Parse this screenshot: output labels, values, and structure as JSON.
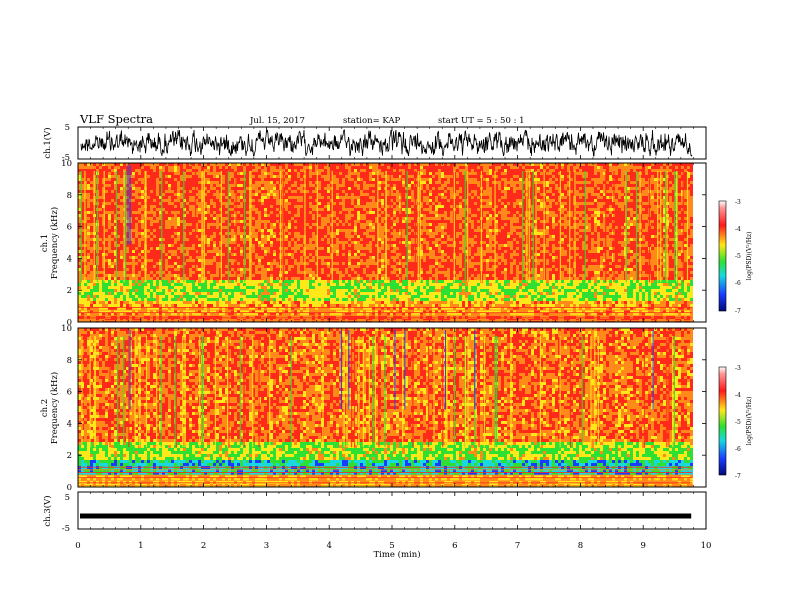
{
  "header": {
    "title": "VLF Spectra",
    "date": "Jul. 15, 2017",
    "station": "station= KAP",
    "start": "start  UT  =   5  : 50 : 1"
  },
  "chart_data": [
    {
      "type": "line",
      "panel": "ch1-waveform",
      "ylabel": "ch.1(V)",
      "ylim": [
        -5,
        5
      ],
      "yticks": [
        "5",
        "-5"
      ],
      "xlim": [
        0,
        10
      ],
      "description_series": "noisy broadband waveform around 0 V, amplitude about ±3 V"
    },
    {
      "type": "heatmap",
      "panel": "ch1-spectrogram",
      "ylabel_top": "ch.1",
      "ylabel": "Frequency  (kHz)",
      "ylim": [
        0,
        10
      ],
      "yticks": [
        "0",
        "2",
        "4",
        "6",
        "8",
        "10"
      ],
      "xlim": [
        0,
        10
      ],
      "colorbar": {
        "label": "log(PSD)(V²/Hz)",
        "range": [
          -7,
          -3
        ],
        "ticks": [
          "-3",
          "-4",
          "-5",
          "-6",
          "-7"
        ]
      }
    },
    {
      "type": "heatmap",
      "panel": "ch2-spectrogram",
      "ylabel_top": "ch.2",
      "ylabel": "Frequency  (kHz)",
      "ylim": [
        0,
        10
      ],
      "yticks": [
        "0",
        "2",
        "4",
        "6",
        "8",
        "10"
      ],
      "xlim": [
        0,
        10
      ],
      "colorbar": {
        "label": "log(PSD)(V²/Hz)",
        "range": [
          -7,
          -3
        ],
        "ticks": [
          "-3",
          "-4",
          "-5",
          "-6",
          "-7"
        ]
      }
    },
    {
      "type": "line",
      "panel": "ch3-waveform",
      "ylabel": "ch.3(V)",
      "ylim": [
        -5,
        5
      ],
      "yticks": [
        "5",
        "-5"
      ],
      "xlim": [
        0,
        10
      ],
      "series": [
        {
          "values": [
            -1.5
          ]
        }
      ]
    }
  ],
  "xaxis": {
    "label": "Time  (min)",
    "ticks": [
      "0",
      "1",
      "2",
      "3",
      "4",
      "5",
      "6",
      "7",
      "8",
      "9",
      "10"
    ]
  },
  "colors": {
    "red": "#ff2a1a",
    "orange": "#ff8a1a",
    "yellow": "#ffe81a",
    "green": "#2ee032",
    "cyan": "#1ad8e0",
    "blue": "#1a3cff",
    "navy": "#000a7a"
  }
}
